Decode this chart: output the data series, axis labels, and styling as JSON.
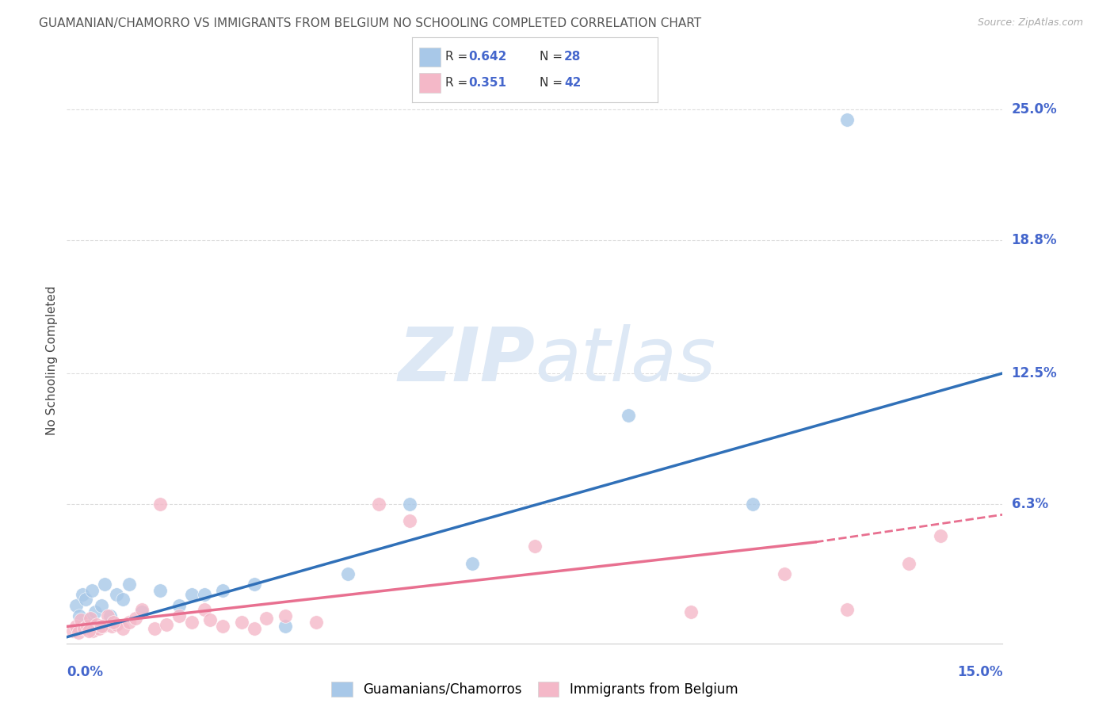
{
  "title": "GUAMANIAN/CHAMORRO VS IMMIGRANTS FROM BELGIUM NO SCHOOLING COMPLETED CORRELATION CHART",
  "source": "Source: ZipAtlas.com",
  "ylabel": "No Schooling Completed",
  "ytick_labels": [
    "6.3%",
    "12.5%",
    "18.8%",
    "25.0%"
  ],
  "ytick_values": [
    6.3,
    12.5,
    18.8,
    25.0
  ],
  "xlim": [
    0.0,
    15.0
  ],
  "ylim": [
    -0.3,
    26.5
  ],
  "blue_color": "#a8c8e8",
  "pink_color": "#f4b8c8",
  "blue_line_color": "#3070b8",
  "pink_line_color": "#e87090",
  "title_color": "#555555",
  "source_color": "#aaaaaa",
  "axis_label_color": "#4466cc",
  "watermark_color": "#dde8f5",
  "grid_color": "#dddddd",
  "grid_style": "--",
  "background_color": "#ffffff",
  "legend1_label": "Guamanians/Chamorros",
  "legend2_label": "Immigrants from Belgium",
  "blue_scatter_x": [
    0.15,
    0.2,
    0.25,
    0.3,
    0.35,
    0.4,
    0.45,
    0.5,
    0.55,
    0.6,
    0.7,
    0.8,
    0.9,
    1.0,
    1.2,
    1.5,
    1.8,
    2.0,
    2.2,
    2.5,
    3.0,
    3.5,
    4.5,
    5.5,
    6.5,
    9.0,
    11.0,
    12.5
  ],
  "blue_scatter_y": [
    1.5,
    1.0,
    2.0,
    1.8,
    0.8,
    2.2,
    1.2,
    0.5,
    1.5,
    2.5,
    1.0,
    2.0,
    1.8,
    2.5,
    1.2,
    2.2,
    1.5,
    2.0,
    2.0,
    2.2,
    2.5,
    0.5,
    3.0,
    6.3,
    3.5,
    10.5,
    6.3,
    24.5
  ],
  "pink_scatter_x": [
    0.1,
    0.15,
    0.18,
    0.22,
    0.28,
    0.32,
    0.38,
    0.42,
    0.48,
    0.52,
    0.58,
    0.65,
    0.72,
    0.8,
    0.9,
    1.0,
    1.1,
    1.2,
    1.4,
    1.6,
    1.8,
    2.0,
    2.2,
    2.5,
    2.8,
    3.0,
    3.5,
    4.0,
    5.0,
    5.5,
    7.5,
    10.0,
    11.5,
    12.5,
    13.5,
    14.0,
    0.35,
    0.55,
    0.75,
    1.5,
    2.3,
    3.2
  ],
  "pink_scatter_y": [
    0.3,
    0.5,
    0.2,
    0.8,
    0.4,
    0.5,
    0.9,
    0.3,
    0.6,
    0.4,
    0.5,
    1.0,
    0.5,
    0.6,
    0.4,
    0.7,
    0.9,
    1.3,
    0.4,
    0.6,
    1.0,
    0.7,
    1.3,
    0.5,
    0.7,
    0.4,
    1.0,
    0.7,
    6.3,
    5.5,
    4.3,
    1.2,
    3.0,
    1.3,
    3.5,
    4.8,
    0.3,
    0.5,
    0.7,
    6.3,
    0.8,
    0.9
  ],
  "blue_line_x0": 0.0,
  "blue_line_x1": 15.0,
  "blue_line_y0": 0.0,
  "blue_line_y1": 12.5,
  "pink_solid_x0": 0.0,
  "pink_solid_x1": 12.0,
  "pink_solid_y0": 0.5,
  "pink_solid_y1": 4.5,
  "pink_dash_x0": 12.0,
  "pink_dash_x1": 15.0,
  "pink_dash_y0": 4.5,
  "pink_dash_y1": 5.8
}
